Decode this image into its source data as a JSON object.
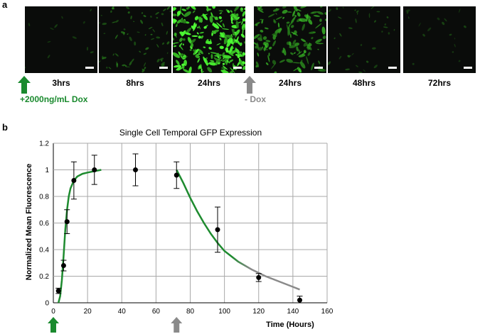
{
  "panel_a": {
    "letter": "a",
    "images": [
      {
        "label": "3hrs",
        "level": 0.03
      },
      {
        "label": "8hrs",
        "level": 0.25
      },
      {
        "label": "24hrs",
        "level": 0.95
      },
      {
        "label": "24hrs",
        "level": 0.5
      },
      {
        "label": "48hrs",
        "level": 0.12
      },
      {
        "label": "72hrs",
        "level": 0.05
      }
    ],
    "add_label": "+2000ng/mL Dox",
    "remove_label": "- Dox",
    "green_color": "#1a8a2e",
    "gray_color": "#8a8a8a"
  },
  "panel_b": {
    "letter": "b"
  },
  "chart_data": {
    "type": "scatter",
    "title": "Single Cell Temporal GFP Expression",
    "xlabel": "Time (Hours)",
    "ylabel": "Normalized Mean Fluorescence",
    "xlim": [
      0,
      160
    ],
    "ylim": [
      0,
      1.2
    ],
    "xticks": [
      0,
      20,
      40,
      60,
      80,
      100,
      120,
      140,
      160
    ],
    "yticks": [
      0,
      0.2,
      0.4,
      0.6,
      0.8,
      1,
      1.2
    ],
    "xtick_labels": [
      "0",
      "20",
      "40",
      "60",
      "80",
      "100",
      "120",
      "140",
      "160"
    ],
    "ytick_labels": [
      "0",
      "0.2",
      "0.4",
      "0.6",
      "0.8",
      "1",
      "1.2"
    ],
    "grid": true,
    "points": [
      {
        "x": 3,
        "y": 0.09,
        "err": 0.02
      },
      {
        "x": 6,
        "y": 0.28,
        "err": 0.04
      },
      {
        "x": 8,
        "y": 0.61,
        "err": 0.09
      },
      {
        "x": 12,
        "y": 0.92,
        "err": 0.14
      },
      {
        "x": 24,
        "y": 1.0,
        "err": 0.11
      },
      {
        "x": 48,
        "y": 1.0,
        "err": 0.12
      },
      {
        "x": 72,
        "y": 0.96,
        "err": 0.1
      },
      {
        "x": 96,
        "y": 0.55,
        "err": 0.17
      },
      {
        "x": 120,
        "y": 0.19,
        "err": 0.03
      },
      {
        "x": 144,
        "y": 0.02,
        "err": 0.03
      }
    ],
    "fit_rise": {
      "color": "#1e8b2f",
      "x": [
        3,
        4,
        5,
        6,
        7,
        8,
        9,
        10,
        12,
        14,
        17,
        20,
        24,
        28
      ],
      "y": [
        0,
        0.05,
        0.17,
        0.35,
        0.55,
        0.7,
        0.8,
        0.86,
        0.92,
        0.95,
        0.97,
        0.98,
        0.99,
        1.0
      ]
    },
    "fit_decay": {
      "color_start": "#1e8b2f",
      "color_end": "#8a8a8a",
      "x": [
        72,
        76,
        80,
        84,
        88,
        92,
        96,
        100,
        108,
        116,
        124,
        132,
        140,
        144
      ],
      "y": [
        1.0,
        0.9,
        0.79,
        0.69,
        0.6,
        0.52,
        0.45,
        0.39,
        0.31,
        0.25,
        0.2,
        0.16,
        0.12,
        0.1
      ]
    },
    "add_arrow_x": 0,
    "remove_arrow_x": 72
  }
}
